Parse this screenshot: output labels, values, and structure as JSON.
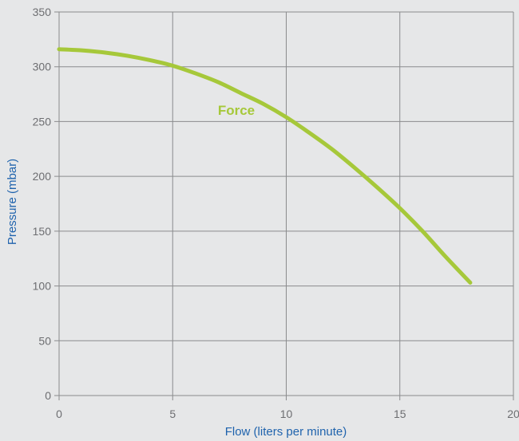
{
  "chart_data": {
    "type": "line",
    "xlabel": "Flow (liters per minute)",
    "ylabel": "Pressure (mbar)",
    "xlim": [
      0,
      20
    ],
    "ylim": [
      0,
      350
    ],
    "x_ticks": [
      0,
      5,
      10,
      15,
      20
    ],
    "y_ticks": [
      0,
      50,
      100,
      150,
      200,
      250,
      300,
      350
    ],
    "grid": true,
    "legend": "inline label on curve",
    "series": [
      {
        "name": "Force",
        "color": "#a6c83a",
        "x": [
          0,
          1,
          2,
          3,
          4,
          5,
          6,
          7,
          8,
          9,
          10,
          11,
          12,
          13,
          14,
          15,
          16,
          17,
          18.1
        ],
        "y": [
          316,
          315,
          313,
          310,
          306,
          301,
          294,
          286,
          276,
          266,
          254,
          240,
          225,
          208,
          190,
          171,
          150,
          127,
          103
        ]
      }
    ]
  },
  "colors": {
    "background": "#e6e7e8",
    "grid": "#8a8b8d",
    "tick_text": "#6d6e71",
    "axis_title": "#1f63ad"
  }
}
